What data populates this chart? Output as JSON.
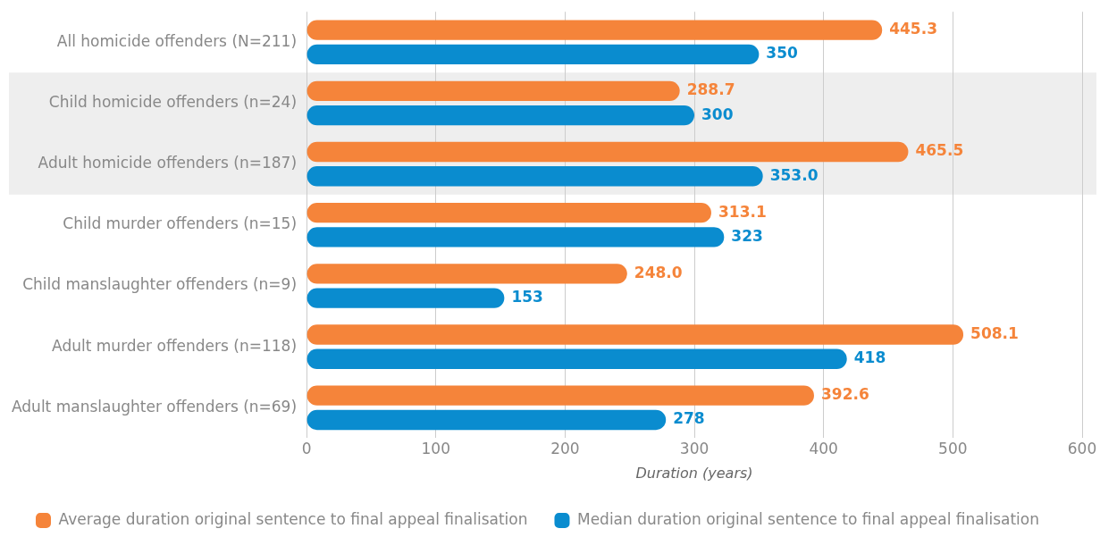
{
  "chart_data": {
    "type": "bar",
    "orientation": "horizontal",
    "xlabel": "Duration (years)",
    "categories": [
      "All homicide offenders (N=211)",
      "Child homicide offenders (n=24)",
      "Adult homicide offenders (n=187)",
      "Child murder offenders (n=15)",
      "Child manslaughter offenders (n=9)",
      "Adult murder offenders (n=118)",
      "Adult manslaughter offenders (n=69)"
    ],
    "series": [
      {
        "name": "Average duration original sentence to final appeal finalisation",
        "color": "#f5843a",
        "values": [
          445.3,
          288.7,
          465.5,
          313.1,
          248.0,
          508.1,
          392.6
        ],
        "value_labels": [
          "445.3",
          "288.7",
          "465.5",
          "313.1",
          "248.0",
          "508.1",
          "392.6"
        ]
      },
      {
        "name": "Median duration original sentence to final appeal finalisation",
        "color": "#0a8ccf",
        "values": [
          350,
          300,
          353.0,
          323,
          153,
          418,
          278
        ],
        "value_labels": [
          "350",
          "300",
          "353.0",
          "323",
          "153",
          "418",
          "278"
        ]
      }
    ],
    "xlim": [
      0,
      600
    ],
    "xticks": [
      0,
      100,
      200,
      300,
      400,
      500,
      600
    ],
    "grid": "x",
    "legend": "bottom",
    "bands": [
      {
        "axis": "y",
        "from": "Child homicide offenders (n=24)",
        "to": "Adult homicide offenders (n=187)",
        "color": "#eeeeee"
      }
    ]
  }
}
